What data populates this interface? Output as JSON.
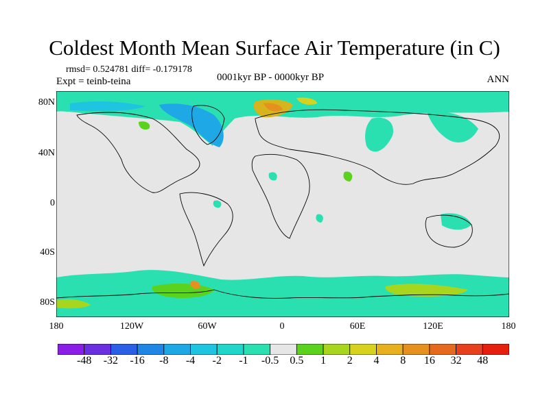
{
  "title": "Coldest Month Mean Surface Air Temperature (in C)",
  "stats_line": "rmsd= 0.524781  diff= -0.179178",
  "expt_line": "Expt = teinb-teina",
  "period_line": "0001kyr BP - 0000kyr BP",
  "season": "ANN",
  "lat_labels": [
    "80N",
    "40N",
    "0",
    "40S",
    "80S"
  ],
  "lon_labels": [
    "180",
    "120W",
    "60W",
    "0",
    "60E",
    "120E",
    "180"
  ],
  "colorbar": {
    "labels": [
      "-48",
      "-32",
      "-16",
      "-8",
      "-4",
      "-2",
      "-1",
      "-0.5",
      "0.5",
      "1",
      "2",
      "4",
      "8",
      "16",
      "32",
      "48"
    ],
    "colors": [
      "#8b1ee6",
      "#6a30e0",
      "#2a5fe6",
      "#1f86e6",
      "#1fa8e6",
      "#1fc4e0",
      "#1fd6c8",
      "#2ae0b0",
      "#e6e6e6",
      "#5ad21e",
      "#a8d61e",
      "#d6d21e",
      "#e6b01e",
      "#e6901e",
      "#e66a1e",
      "#e6401e",
      "#e6200e"
    ]
  },
  "colors": {
    "land_background": "#e6e6e6",
    "cool_anomaly": "#2ae0b0",
    "cold_anomaly": "#1fa8e6",
    "warm_anomaly": "#5ad21e",
    "hot_anomaly": "#e6901e"
  }
}
